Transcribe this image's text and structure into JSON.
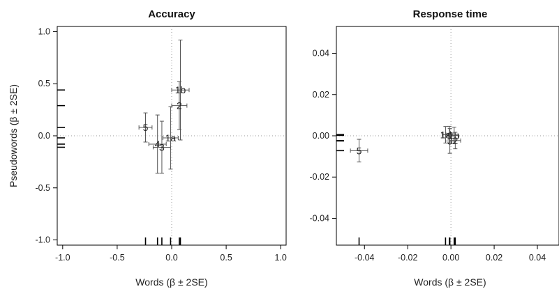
{
  "chart_data": [
    {
      "type": "scatter",
      "title": "Accuracy",
      "xlabel": "Words (β ± 2SE)",
      "ylabel": "Pseudowords (β ± 2SE)",
      "xlim": [
        -1.05,
        1.05
      ],
      "ylim": [
        -1.05,
        1.05
      ],
      "xticks": [
        "-1.0",
        "-0.5",
        "0.0",
        "0.5",
        "1.0"
      ],
      "yticks": [
        "-1.0",
        "-0.5",
        "0.0",
        "0.5",
        "1.0"
      ],
      "xtick_values": [
        -1.0,
        -0.5,
        0.0,
        0.5,
        1.0
      ],
      "ytick_values": [
        -1.0,
        -0.5,
        0.0,
        0.5,
        1.0
      ],
      "reference_lines": {
        "x": 0,
        "y": 0
      },
      "points": [
        {
          "label": "1b",
          "x": 0.08,
          "y": 0.44,
          "x_err": 0.08,
          "y_err": 0.48
        },
        {
          "label": "2",
          "x": 0.07,
          "y": 0.29,
          "x_err": 0.07,
          "y_err": 0.23
        },
        {
          "label": "5",
          "x": -0.24,
          "y": 0.08,
          "x_err": 0.06,
          "y_err": 0.14
        },
        {
          "label": "1a",
          "x": -0.01,
          "y": -0.02,
          "x_err": 0.07,
          "y_err": 0.3
        },
        {
          "label": "4",
          "x": -0.13,
          "y": -0.08,
          "x_err": 0.08,
          "y_err": 0.28
        },
        {
          "label": "3",
          "x": -0.09,
          "y": -0.11,
          "x_err": 0.08,
          "y_err": 0.25
        }
      ]
    },
    {
      "type": "scatter",
      "title": "Response time",
      "xlabel": "Words (β ± 2SE)",
      "ylabel": "",
      "xlim": [
        -0.053,
        0.05
      ],
      "ylim": [
        -0.053,
        0.053
      ],
      "xticks": [
        "-0.04",
        "-0.02",
        "0.00",
        "0.02",
        "0.04"
      ],
      "yticks": [
        "-0.04",
        "-0.02",
        "0.00",
        "0.02",
        "0.04"
      ],
      "xtick_values": [
        -0.04,
        -0.02,
        0.0,
        0.02,
        0.04
      ],
      "ytick_values": [
        -0.04,
        -0.02,
        0.0,
        0.02,
        0.04
      ],
      "reference_lines": {
        "x": 0,
        "y": 0
      },
      "points": [
        {
          "label": "1a",
          "x": -0.0025,
          "y": 0.0005,
          "x_err": 0.0015,
          "y_err": 0.004
        },
        {
          "label": "4",
          "x": -0.0007,
          "y": 0.0006,
          "x_err": 0.0016,
          "y_err": 0.004
        },
        {
          "label": "1b",
          "x": 0.0015,
          "y": 0.0002,
          "x_err": 0.0018,
          "y_err": 0.004
        },
        {
          "label": "3",
          "x": -0.0005,
          "y": -0.0025,
          "x_err": 0.002,
          "y_err": 0.006
        },
        {
          "label": "2",
          "x": 0.002,
          "y": -0.0023,
          "x_err": 0.0025,
          "y_err": 0.004
        },
        {
          "label": "5",
          "x": -0.0425,
          "y": -0.0072,
          "x_err": 0.004,
          "y_err": 0.0055
        }
      ]
    }
  ]
}
